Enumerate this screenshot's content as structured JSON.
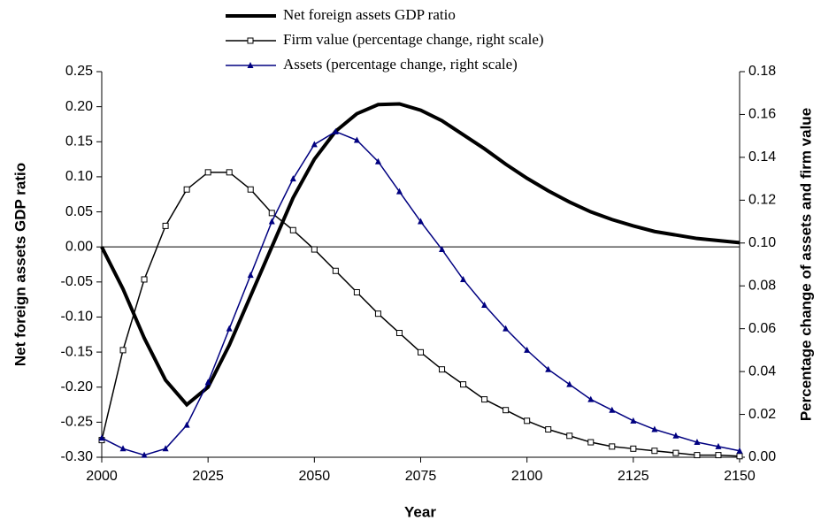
{
  "chart_data": {
    "type": "line",
    "xlabel": "Year",
    "ylabel": "Net foreign assets GDP ratio",
    "y2label": "Percentage change of assets and firm value",
    "x": [
      2000,
      2005,
      2010,
      2015,
      2020,
      2025,
      2030,
      2035,
      2040,
      2045,
      2050,
      2055,
      2060,
      2065,
      2070,
      2075,
      2080,
      2085,
      2090,
      2095,
      2100,
      2105,
      2110,
      2115,
      2120,
      2125,
      2130,
      2135,
      2140,
      2145,
      2150
    ],
    "xlim": [
      2000,
      2150
    ],
    "xticks": [
      2000,
      2025,
      2050,
      2075,
      2100,
      2125,
      2150
    ],
    "ylim": [
      -0.3,
      0.25
    ],
    "yticks": [
      {
        "value": -0.3,
        "label": "-0.30"
      },
      {
        "value": -0.25,
        "label": "-0.25"
      },
      {
        "value": -0.2,
        "label": "-0.20"
      },
      {
        "value": -0.15,
        "label": "-0.15"
      },
      {
        "value": -0.1,
        "label": "-0.10"
      },
      {
        "value": -0.05,
        "label": "-0.05"
      },
      {
        "value": 0,
        "label": "0.00"
      },
      {
        "value": 0.05,
        "label": "0.05"
      },
      {
        "value": 0.1,
        "label": "0.10"
      },
      {
        "value": 0.15,
        "label": "0.15"
      },
      {
        "value": 0.2,
        "label": "0.20"
      },
      {
        "value": 0.25,
        "label": "0.25"
      }
    ],
    "y2lim": [
      0,
      0.18
    ],
    "y2ticks": [
      {
        "value": 0,
        "label": "0.00"
      },
      {
        "value": 0.02,
        "label": "0.02"
      },
      {
        "value": 0.04,
        "label": "0.04"
      },
      {
        "value": 0.06,
        "label": "0.06"
      },
      {
        "value": 0.08,
        "label": "0.08"
      },
      {
        "value": 0.1,
        "label": "0.10"
      },
      {
        "value": 0.12,
        "label": "0.12"
      },
      {
        "value": 0.14,
        "label": "0.14"
      },
      {
        "value": 0.16,
        "label": "0.16"
      },
      {
        "value": 0.18,
        "label": "0.18"
      }
    ],
    "legend": "top",
    "series": [
      {
        "name": "Net foreign assets GDP ratio",
        "color": "#000000",
        "axis": "y",
        "marker": "none",
        "values": [
          0,
          -0.06,
          -0.13,
          -0.19,
          -0.225,
          -0.2,
          -0.14,
          -0.07,
          0.0,
          0.07,
          0.125,
          0.165,
          0.19,
          0.203,
          0.204,
          0.195,
          0.18,
          0.16,
          0.14,
          0.118,
          0.098,
          0.08,
          0.064,
          0.05,
          0.039,
          0.03,
          0.022,
          0.017,
          0.012,
          0.009,
          0.006
        ]
      },
      {
        "name": "Firm value (percentage change, right scale)",
        "color": "#000000",
        "axis": "y2",
        "marker": "square",
        "values": [
          0.008,
          0.05,
          0.083,
          0.108,
          0.125,
          0.133,
          0.133,
          0.125,
          0.114,
          0.106,
          0.097,
          0.087,
          0.077,
          0.067,
          0.058,
          0.049,
          0.041,
          0.034,
          0.027,
          0.022,
          0.017,
          0.013,
          0.01,
          0.007,
          0.005,
          0.004,
          0.003,
          0.002,
          0.001,
          0.001,
          0.0005
        ]
      },
      {
        "name": "Assets (percentage change, right scale)",
        "color": "#000080",
        "axis": "y2",
        "marker": "triangle",
        "values": [
          0.009,
          0.004,
          0.001,
          0.004,
          0.015,
          0.035,
          0.06,
          0.085,
          0.11,
          0.13,
          0.146,
          0.152,
          0.148,
          0.138,
          0.124,
          0.11,
          0.097,
          0.083,
          0.071,
          0.06,
          0.05,
          0.041,
          0.034,
          0.027,
          0.022,
          0.017,
          0.013,
          0.01,
          0.007,
          0.005,
          0.003
        ]
      }
    ]
  }
}
